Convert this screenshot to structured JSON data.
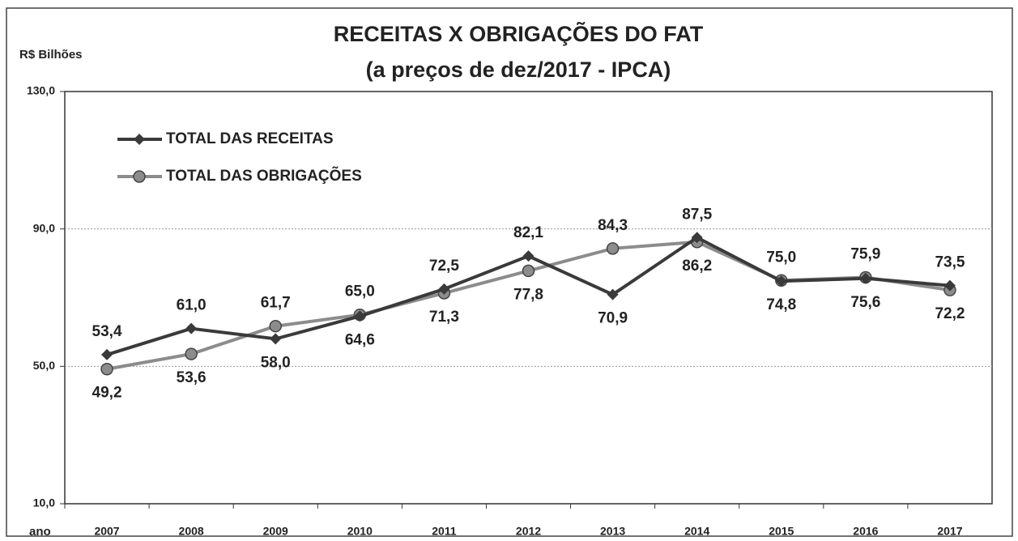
{
  "chart_data": {
    "type": "line",
    "title": "RECEITAS X OBRIGAÇÕES DO FAT",
    "subtitle": "(a preços de dez/2017 - IPCA)",
    "y_label": "R$ Bilhões",
    "x_label": "ano",
    "categories": [
      "2007",
      "2008",
      "2009",
      "2010",
      "2011",
      "2012",
      "2013",
      "2014",
      "2015",
      "2016",
      "2017"
    ],
    "series": [
      {
        "name": "TOTAL DAS RECEITAS",
        "color": "#3a3a3a",
        "marker": "diamond",
        "values": [
          53.4,
          61.0,
          58.0,
          64.6,
          72.5,
          82.1,
          70.9,
          87.5,
          74.8,
          75.6,
          73.5
        ],
        "value_labels": [
          "53,4",
          "61,0",
          "58,0",
          "64,6",
          "72,5",
          "82,1",
          "70,9",
          "87,5",
          "74,8",
          "75,6",
          "73,5"
        ]
      },
      {
        "name": "TOTAL DAS OBRIGAÇÕES",
        "color": "#8c8c8c",
        "marker": "circle",
        "values": [
          49.2,
          53.6,
          61.7,
          65.0,
          71.3,
          77.8,
          84.3,
          86.2,
          75.0,
          75.9,
          72.2
        ],
        "value_labels": [
          "49,2",
          "53,6",
          "61,7",
          "65,0",
          "71,3",
          "77,8",
          "84,3",
          "86,2",
          "75,0",
          "75,9",
          "72,2"
        ]
      }
    ],
    "ylim": [
      10,
      130
    ],
    "yticks": [
      {
        "value": 10,
        "label": "10,0"
      },
      {
        "value": 50,
        "label": "50,0"
      },
      {
        "value": 90,
        "label": "90,0"
      },
      {
        "value": 130,
        "label": "130,0"
      }
    ],
    "grid": true,
    "legend": "upper left"
  }
}
